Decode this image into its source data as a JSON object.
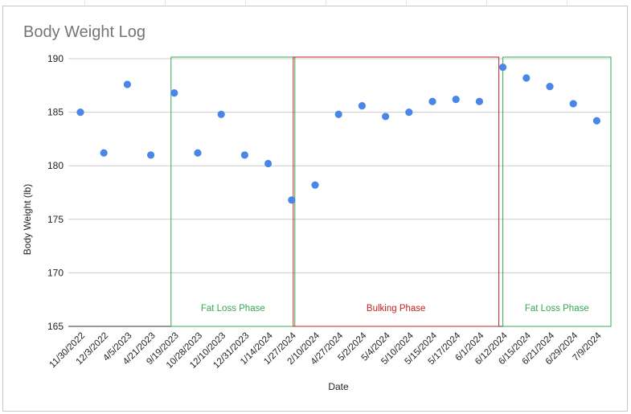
{
  "chart_data": {
    "type": "scatter",
    "title": "Body Weight Log",
    "xlabel": "Date",
    "ylabel": "Body Weight (lb)",
    "ylim": [
      165,
      190
    ],
    "yticks": [
      "165",
      "170",
      "175",
      "180",
      "185",
      "190"
    ],
    "grid": true,
    "legend": "none",
    "categories": [
      "11/30/2022",
      "12/3/2022",
      "4/5/2023",
      "4/21/2023",
      "9/19/2023",
      "10/28/2023",
      "12/10/2023",
      "12/31/2023",
      "1/14/2024",
      "1/27/2024",
      "2/10/2024",
      "4/27/2024",
      "5/2/2024",
      "5/4/2024",
      "5/10/2024",
      "5/15/2024",
      "5/17/2024",
      "6/1/2024",
      "6/12/2024",
      "6/15/2024",
      "6/21/2024",
      "6/29/2024",
      "7/9/2024"
    ],
    "values": [
      185.0,
      181.2,
      187.6,
      181.0,
      186.8,
      181.2,
      184.8,
      181.0,
      180.2,
      176.8,
      178.2,
      184.8,
      185.6,
      184.6,
      185.0,
      186.0,
      186.2,
      186.0,
      189.2,
      188.2,
      187.4,
      185.8,
      184.2
    ],
    "point_color": "#4a86e8",
    "annotations": [
      {
        "label": "Fat Loss Phase",
        "from_index": 4,
        "to_index": 9,
        "color": "#34a853"
      },
      {
        "label": "Bulking Phase",
        "from_index": 9,
        "to_index": 18,
        "color": "#c5221f"
      },
      {
        "label": "Fat Loss Phase",
        "from_index": 18,
        "to_index": 22,
        "color": "#34a853"
      }
    ]
  }
}
